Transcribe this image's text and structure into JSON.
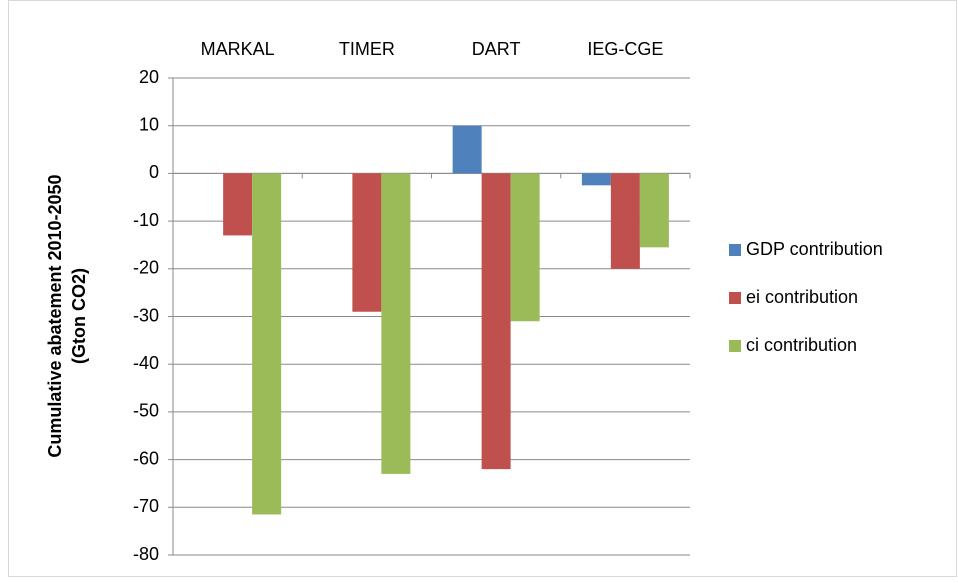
{
  "chart_data": {
    "type": "bar",
    "categories": [
      "MARKAL",
      "TIMER",
      "DART",
      "IEG-CGE"
    ],
    "series": [
      {
        "name": "GDP contribution",
        "color": "#4f81bd",
        "values": [
          0,
          0,
          10,
          -2.5
        ]
      },
      {
        "name": "ei contribution",
        "color": "#c0504d",
        "values": [
          -13,
          -29,
          -62,
          -20
        ]
      },
      {
        "name": "ci contribution",
        "color": "#9bbb59",
        "values": [
          -71.5,
          -63,
          -31,
          -15.5
        ]
      }
    ],
    "ylabel": [
      "Cumulative abatement 2010-2050",
      "(Gton CO2)"
    ],
    "ylim": [
      -80,
      20
    ],
    "yticks": [
      -80,
      -70,
      -60,
      -50,
      -40,
      -30,
      -20,
      -10,
      0,
      10,
      20
    ],
    "grid": true,
    "legend": "right"
  }
}
